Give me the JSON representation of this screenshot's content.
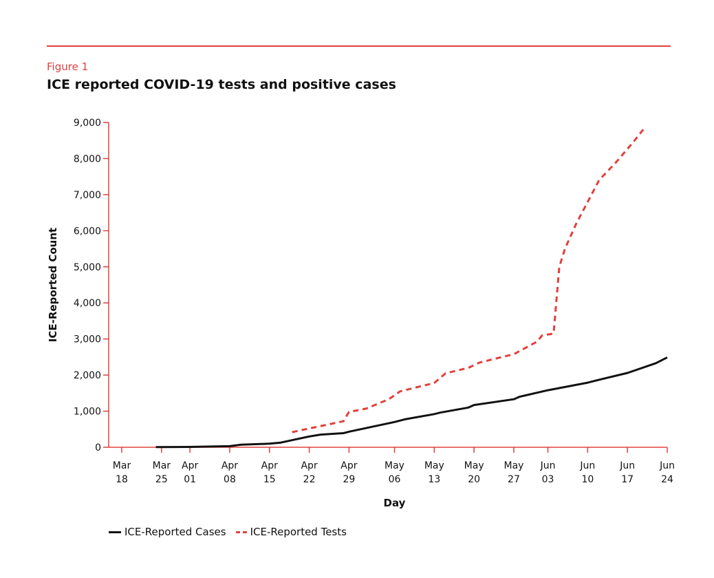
{
  "header": {
    "figure_label": "Figure 1",
    "title": "ICE reported COVID-19 tests and positive cases"
  },
  "colors": {
    "accent": "#e0403c",
    "cases": "#111111",
    "tests": "#e0403c"
  },
  "chart_data": {
    "type": "line",
    "title": "ICE reported COVID-19 tests and positive cases",
    "xlabel": "Day",
    "ylabel": "ICE-Reported Count",
    "ylim": [
      0,
      9000
    ],
    "yticks": [
      "0",
      "1,000",
      "2,000",
      "3,000",
      "4,000",
      "5,000",
      "6,000",
      "7,000",
      "8,000",
      "9,000"
    ],
    "xlim": [
      "Mar 18",
      "Jun 24"
    ],
    "xticks": [
      [
        "Mar",
        "18"
      ],
      [
        "Mar",
        "25"
      ],
      [
        "Apr",
        "01"
      ],
      [
        "Apr",
        "08"
      ],
      [
        "Apr",
        "15"
      ],
      [
        "Apr",
        "22"
      ],
      [
        "Apr",
        "29"
      ],
      [
        "May",
        "06"
      ],
      [
        "May",
        "13"
      ],
      [
        "May",
        "20"
      ],
      [
        "May",
        "27"
      ],
      [
        "Jun",
        "03"
      ],
      [
        "Jun",
        "10"
      ],
      [
        "Jun",
        "17"
      ],
      [
        "Jun",
        "24"
      ]
    ],
    "grid": false,
    "legend": "bottom-left",
    "series": [
      {
        "name": "ICE-Reported Cases",
        "style": "solid",
        "color": "#111111",
        "x": [
          "Mar 24",
          "Apr 01",
          "Apr 08",
          "Apr 10",
          "Apr 15",
          "Apr 17",
          "Apr 22",
          "Apr 24",
          "Apr 28",
          "Apr 29",
          "May 06",
          "May 08",
          "May 13",
          "May 14",
          "May 19",
          "May 20",
          "May 27",
          "May 28",
          "Jun 03",
          "Jun 10",
          "Jun 12",
          "Jun 17",
          "Jun 22",
          "Jun 24"
        ],
        "y": [
          5,
          10,
          30,
          70,
          100,
          130,
          300,
          350,
          390,
          430,
          700,
          780,
          920,
          960,
          1100,
          1170,
          1330,
          1400,
          1580,
          1790,
          1870,
          2060,
          2330,
          2490
        ]
      },
      {
        "name": "ICE-Reported Tests",
        "style": "dashed",
        "color": "#e0403c",
        "x": [
          "Apr 19",
          "Apr 22",
          "Apr 28",
          "Apr 29",
          "May 01",
          "May 05",
          "May 07",
          "May 13",
          "May 15",
          "May 19",
          "May 21",
          "May 27",
          "Jun 01",
          "Jun 02",
          "Jun 04",
          "Jun 05",
          "Jun 06",
          "Jun 08",
          "Jun 10",
          "Jun 12",
          "Jun 15",
          "Jun 18",
          "Jun 20"
        ],
        "y": [
          420,
          520,
          720,
          980,
          1070,
          1330,
          1550,
          1780,
          2050,
          2200,
          2350,
          2580,
          2920,
          3100,
          3150,
          5000,
          5500,
          6200,
          6800,
          7400,
          7900,
          8450,
          8850
        ]
      }
    ]
  }
}
